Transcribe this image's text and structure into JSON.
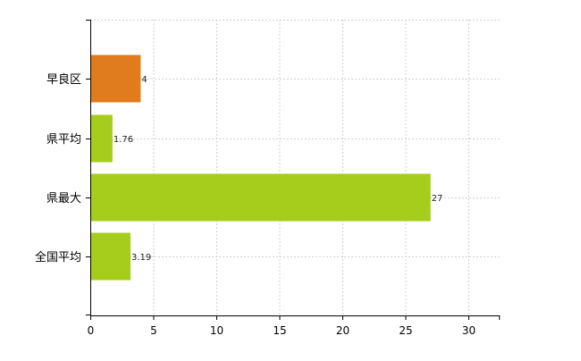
{
  "chart_data": {
    "type": "bar",
    "orientation": "horizontal",
    "categories": [
      "早良区",
      "県平均",
      "県最大",
      "全国平均"
    ],
    "values": [
      4,
      1.76,
      27,
      3.19
    ],
    "data_labels": [
      "4",
      "1.76",
      "27",
      "3.19"
    ],
    "bar_colors": [
      "#e07b1e",
      "#a6cc1c",
      "#a6cc1c",
      "#a6cc1c"
    ],
    "xlim": [
      0,
      32.5
    ],
    "x_ticks": [
      0,
      5,
      10,
      15,
      20,
      25,
      30
    ],
    "x_tick_labels": [
      "0",
      "5",
      "10",
      "15",
      "20",
      "25",
      "30"
    ],
    "grid": true,
    "gridline_style": "dashed",
    "legend": "none"
  }
}
